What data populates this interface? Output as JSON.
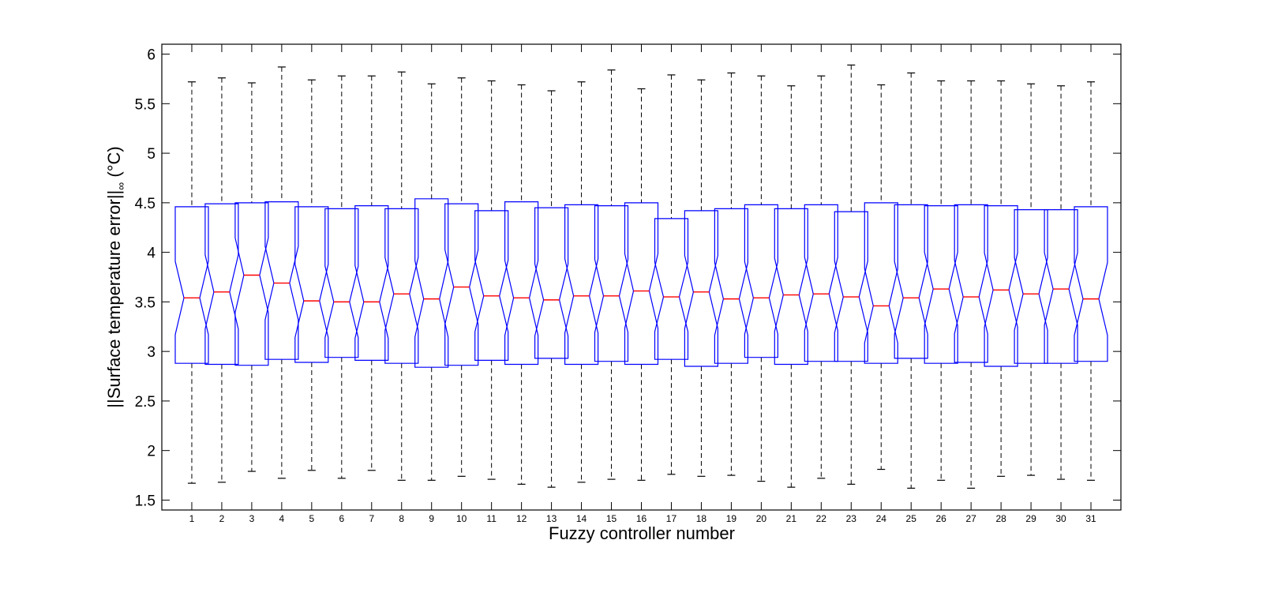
{
  "chart_data": {
    "type": "boxplot",
    "notched": true,
    "xlabel": "Fuzzy controller number",
    "ylabel": {
      "main": "||Surface temperature error||",
      "subscript": "∞",
      "unit": " (°C)"
    },
    "ylim": [
      1.4,
      6.1
    ],
    "yticks": [
      "1.5",
      "2",
      "2.5",
      "3",
      "3.5",
      "4",
      "4.5",
      "5",
      "5.5",
      "6"
    ],
    "categories": [
      "1",
      "2",
      "3",
      "4",
      "5",
      "6",
      "7",
      "8",
      "9",
      "10",
      "11",
      "12",
      "13",
      "14",
      "15",
      "16",
      "17",
      "18",
      "19",
      "20",
      "21",
      "22",
      "23",
      "24",
      "25",
      "26",
      "27",
      "28",
      "29",
      "30",
      "31"
    ],
    "grid": false,
    "colors": {
      "box": "#0000ff",
      "median": "#ff0000",
      "whisker": "#000000",
      "axis": "#000000"
    },
    "boxes": [
      {
        "min": 1.67,
        "q1": 2.88,
        "median": 3.54,
        "q3": 4.46,
        "max": 5.72
      },
      {
        "min": 1.68,
        "q1": 2.87,
        "median": 3.6,
        "q3": 4.49,
        "max": 5.76
      },
      {
        "min": 1.79,
        "q1": 2.86,
        "median": 3.77,
        "q3": 4.5,
        "max": 5.71
      },
      {
        "min": 1.72,
        "q1": 2.92,
        "median": 3.69,
        "q3": 4.51,
        "max": 5.87
      },
      {
        "min": 1.8,
        "q1": 2.89,
        "median": 3.51,
        "q3": 4.46,
        "max": 5.74
      },
      {
        "min": 1.72,
        "q1": 2.94,
        "median": 3.5,
        "q3": 4.44,
        "max": 5.78
      },
      {
        "min": 1.8,
        "q1": 2.91,
        "median": 3.5,
        "q3": 4.47,
        "max": 5.78
      },
      {
        "min": 1.7,
        "q1": 2.88,
        "median": 3.58,
        "q3": 4.44,
        "max": 5.82
      },
      {
        "min": 1.7,
        "q1": 2.84,
        "median": 3.53,
        "q3": 4.54,
        "max": 5.7
      },
      {
        "min": 1.74,
        "q1": 2.86,
        "median": 3.65,
        "q3": 4.49,
        "max": 5.76
      },
      {
        "min": 1.71,
        "q1": 2.91,
        "median": 3.56,
        "q3": 4.42,
        "max": 5.73
      },
      {
        "min": 1.66,
        "q1": 2.87,
        "median": 3.54,
        "q3": 4.51,
        "max": 5.69
      },
      {
        "min": 1.63,
        "q1": 2.93,
        "median": 3.52,
        "q3": 4.45,
        "max": 5.63
      },
      {
        "min": 1.68,
        "q1": 2.87,
        "median": 3.56,
        "q3": 4.48,
        "max": 5.72
      },
      {
        "min": 1.71,
        "q1": 2.9,
        "median": 3.56,
        "q3": 4.47,
        "max": 5.84
      },
      {
        "min": 1.7,
        "q1": 2.87,
        "median": 3.61,
        "q3": 4.5,
        "max": 5.65
      },
      {
        "min": 1.76,
        "q1": 2.92,
        "median": 3.55,
        "q3": 4.34,
        "max": 5.79
      },
      {
        "min": 1.74,
        "q1": 2.85,
        "median": 3.6,
        "q3": 4.42,
        "max": 5.74
      },
      {
        "min": 1.75,
        "q1": 2.88,
        "median": 3.53,
        "q3": 4.44,
        "max": 5.81
      },
      {
        "min": 1.69,
        "q1": 2.94,
        "median": 3.54,
        "q3": 4.48,
        "max": 5.78
      },
      {
        "min": 1.63,
        "q1": 2.87,
        "median": 3.57,
        "q3": 4.44,
        "max": 5.68
      },
      {
        "min": 1.72,
        "q1": 2.9,
        "median": 3.58,
        "q3": 4.48,
        "max": 5.78
      },
      {
        "min": 1.66,
        "q1": 2.9,
        "median": 3.55,
        "q3": 4.41,
        "max": 5.89
      },
      {
        "min": 1.81,
        "q1": 2.88,
        "median": 3.46,
        "q3": 4.5,
        "max": 5.69
      },
      {
        "min": 1.62,
        "q1": 2.93,
        "median": 3.54,
        "q3": 4.48,
        "max": 5.81
      },
      {
        "min": 1.7,
        "q1": 2.88,
        "median": 3.63,
        "q3": 4.47,
        "max": 5.73
      },
      {
        "min": 1.62,
        "q1": 2.89,
        "median": 3.55,
        "q3": 4.48,
        "max": 5.73
      },
      {
        "min": 1.74,
        "q1": 2.85,
        "median": 3.62,
        "q3": 4.47,
        "max": 5.73
      },
      {
        "min": 1.75,
        "q1": 2.88,
        "median": 3.58,
        "q3": 4.43,
        "max": 5.7
      },
      {
        "min": 1.71,
        "q1": 2.88,
        "median": 3.63,
        "q3": 4.43,
        "max": 5.68
      },
      {
        "min": 1.7,
        "q1": 2.9,
        "median": 3.53,
        "q3": 4.46,
        "max": 5.72
      }
    ]
  }
}
